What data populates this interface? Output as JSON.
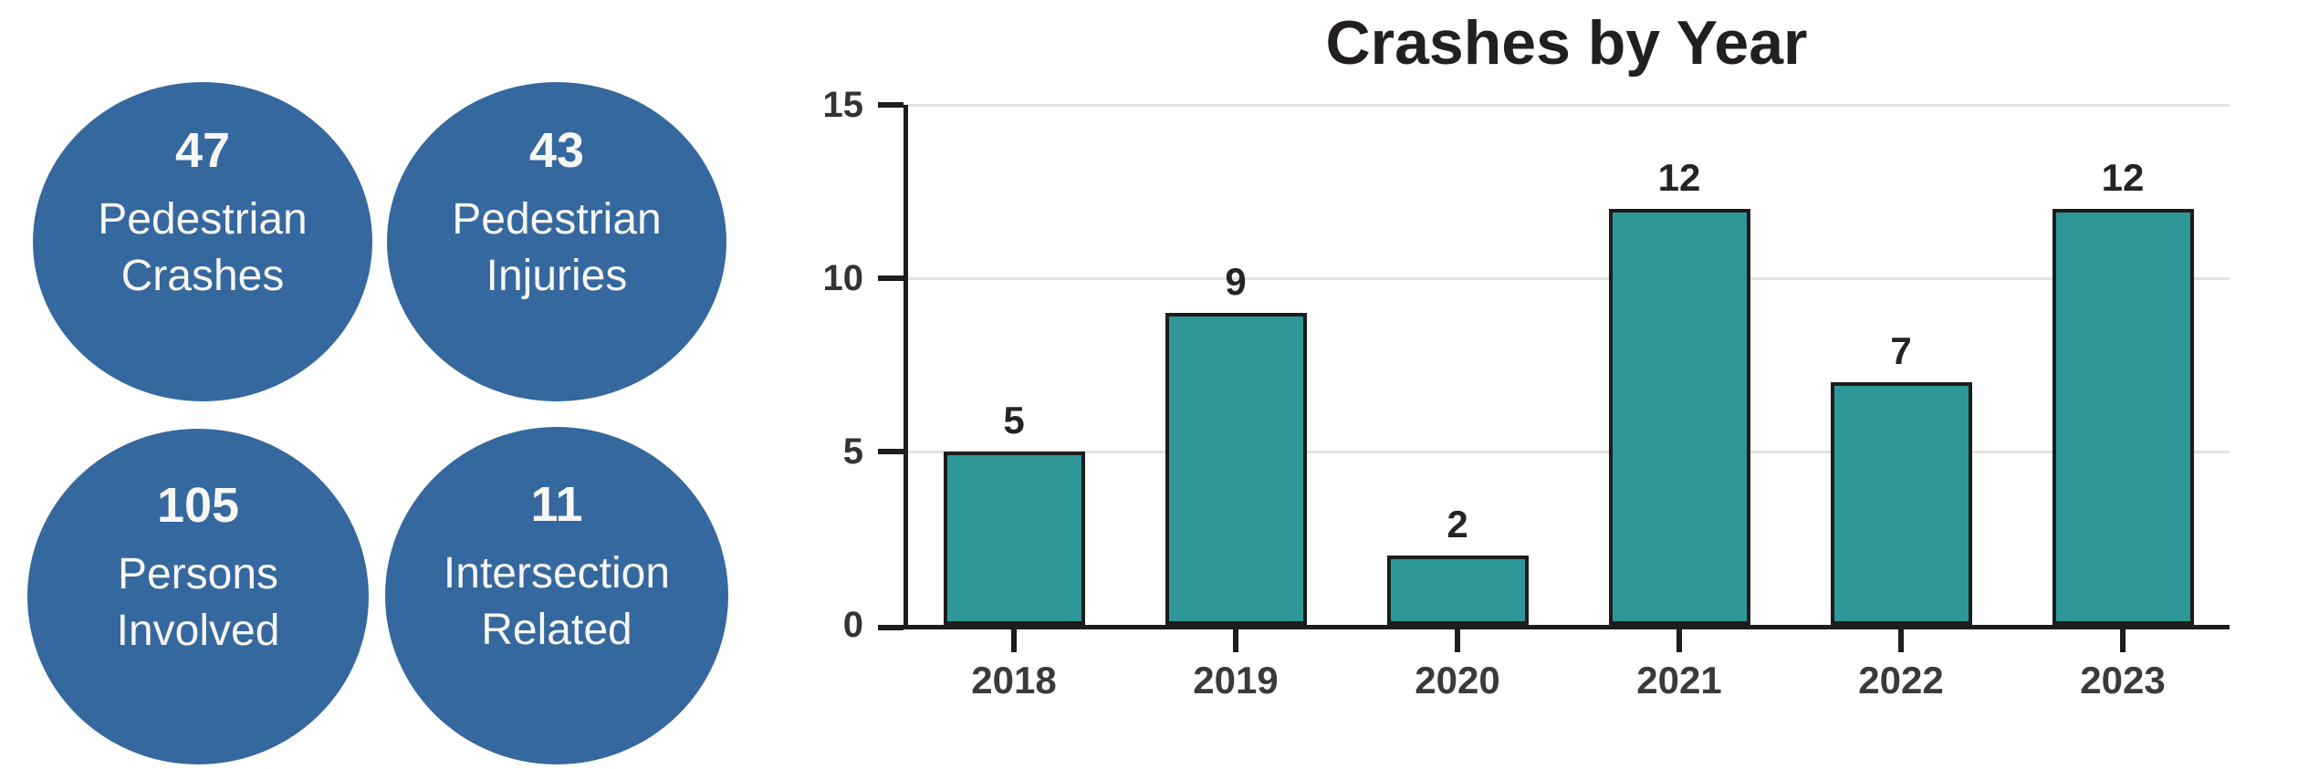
{
  "stat_circles": [
    {
      "value": "47",
      "lines": [
        "Pedestrian",
        "Crashes"
      ]
    },
    {
      "value": "43",
      "lines": [
        "Pedestrian",
        "Injuries"
      ]
    },
    {
      "value": "105",
      "lines": [
        "Persons",
        "Involved"
      ]
    },
    {
      "value": "11",
      "lines": [
        "Intersection",
        "Related"
      ]
    }
  ],
  "chart_data": {
    "type": "bar",
    "title": "Crashes by Year",
    "categories": [
      "2018",
      "2019",
      "2020",
      "2021",
      "2022",
      "2023"
    ],
    "values": [
      5,
      9,
      2,
      12,
      7,
      12
    ],
    "data_labels": [
      "5",
      "9",
      "2",
      "12",
      "7",
      "12"
    ],
    "y_ticks": [
      0,
      5,
      10,
      15
    ],
    "ylim": [
      0,
      15
    ],
    "grid": true,
    "legend": "none",
    "xlabel": "",
    "ylabel": ""
  },
  "colors": {
    "circle_fill": "#35689E",
    "circle_text": "#F7F7F4",
    "bar_fill": "#2E9898",
    "bar_border": "#1D1D1D"
  }
}
